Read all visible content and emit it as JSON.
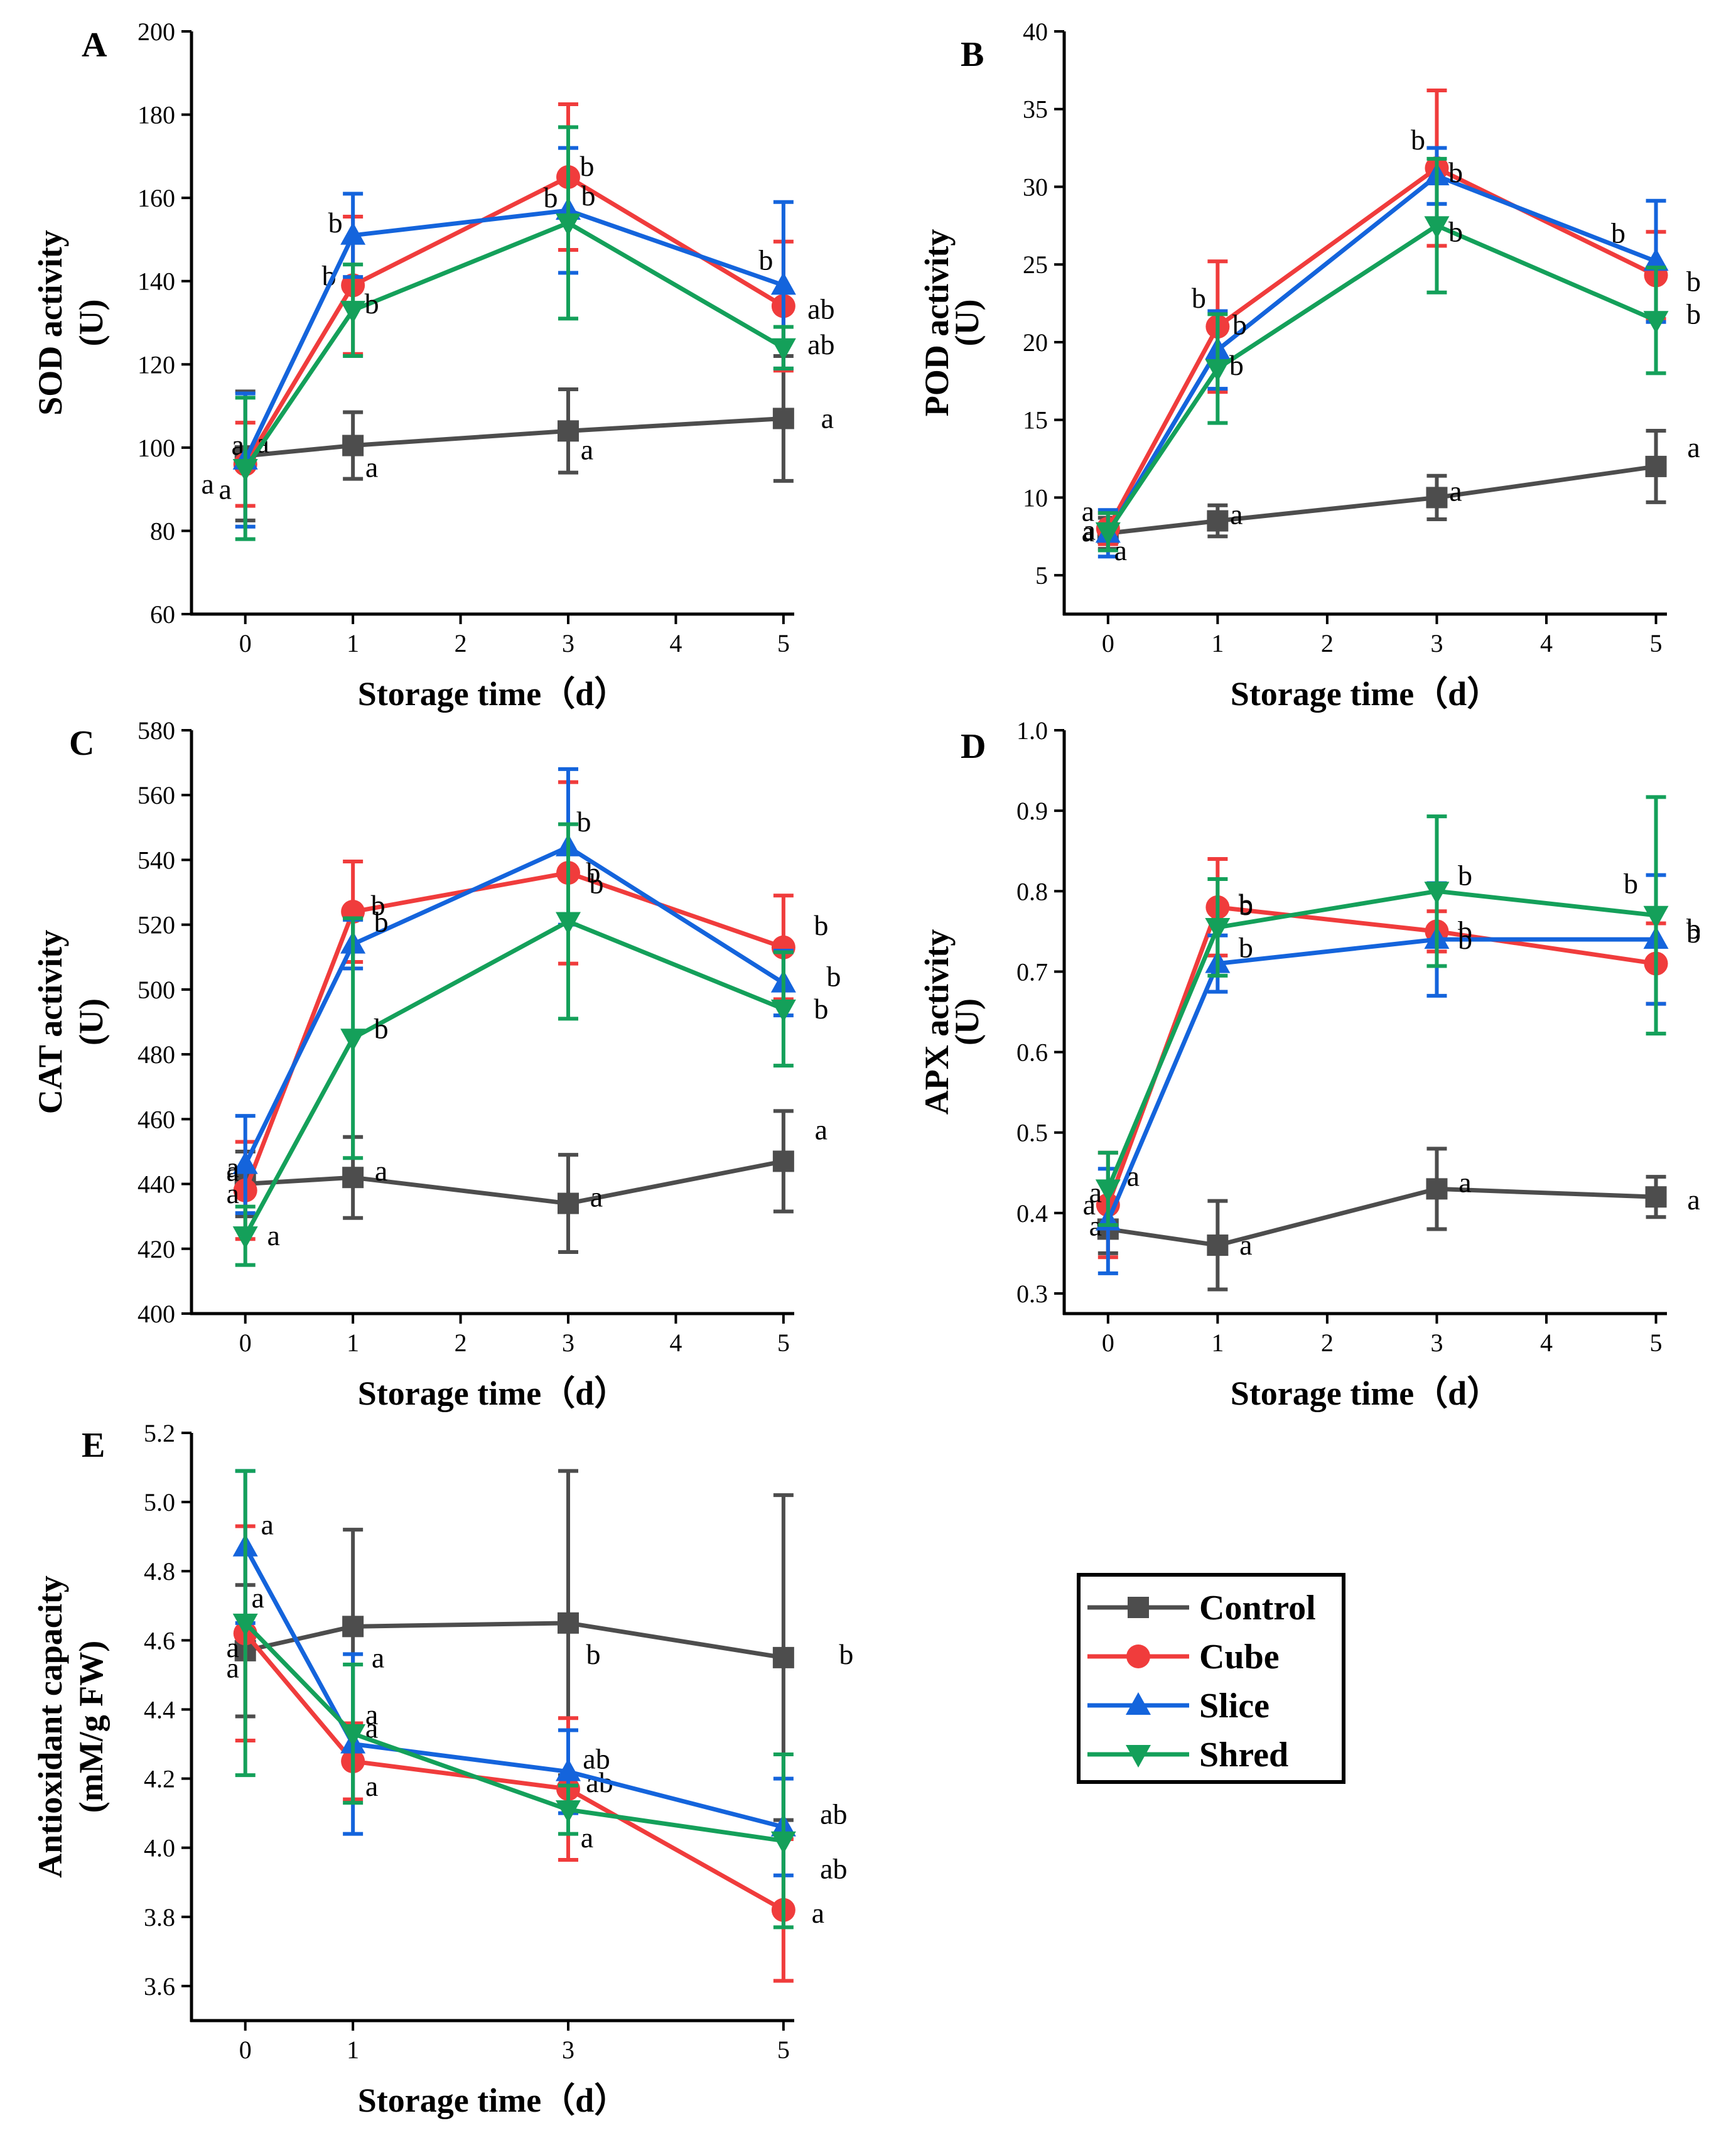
{
  "figure": {
    "colors": {
      "Control": "#4d4d4d",
      "Cube": "#f03c3c",
      "Slice": "#1464dc",
      "Shred": "#14a05a"
    }
  },
  "legend": {
    "title": "",
    "position": "lower-right",
    "entries": [
      {
        "name": "Control",
        "marker": "square"
      },
      {
        "name": "Cube",
        "marker": "circle"
      },
      {
        "name": "Slice",
        "marker": "triangle-up"
      },
      {
        "name": "Shred",
        "marker": "triangle-down"
      }
    ]
  },
  "chart_data": [
    {
      "panel": "A",
      "type": "line",
      "xlabel": "Storage time（d）",
      "ylabel": [
        "SOD activity",
        "(U)"
      ],
      "xlim": [
        -0.5,
        5.1
      ],
      "xticks": [
        0,
        1,
        2,
        3,
        4,
        5
      ],
      "ylim": [
        60,
        200
      ],
      "yticks": [
        60,
        80,
        100,
        120,
        140,
        160,
        180,
        200
      ],
      "x": [
        0,
        1,
        3,
        5
      ],
      "series": [
        {
          "name": "Control",
          "values": [
            98,
            100.5,
            104,
            107
          ],
          "errors": [
            15.5,
            8,
            10,
            15
          ],
          "labels": [
            "a",
            "a",
            "a",
            "a"
          ]
        },
        {
          "name": "Cube",
          "values": [
            96,
            139,
            165,
            134
          ],
          "errors": [
            10,
            16.5,
            17.5,
            15.5
          ],
          "labels": [
            "a",
            "b",
            "b",
            "ab"
          ]
        },
        {
          "name": "Slice",
          "values": [
            97,
            151,
            157,
            139
          ],
          "errors": [
            16,
            10,
            15,
            20
          ],
          "labels": [
            "a",
            "b",
            "b",
            "b"
          ]
        },
        {
          "name": "Shred",
          "values": [
            95,
            133,
            154,
            124
          ],
          "errors": [
            17,
            11,
            23,
            5
          ],
          "labels": [
            "a",
            "b",
            "b",
            "ab"
          ]
        }
      ]
    },
    {
      "panel": "B",
      "type": "line",
      "xlabel": "Storage time（d）",
      "ylabel": [
        "POD activity",
        "(U)"
      ],
      "xlim": [
        -0.4,
        5.1
      ],
      "xticks": [
        0,
        1,
        2,
        3,
        4,
        5
      ],
      "ylim": [
        2.5,
        40
      ],
      "yticks": [
        5,
        10,
        15,
        20,
        25,
        30,
        35,
        40
      ],
      "x": [
        0,
        1,
        3,
        5
      ],
      "series": [
        {
          "name": "Control",
          "values": [
            7.7,
            8.5,
            10,
            12
          ],
          "errors": [
            1,
            1,
            1.4,
            2.3
          ],
          "labels": [
            "a",
            "a",
            "a",
            "a"
          ]
        },
        {
          "name": "Cube",
          "values": [
            8.0,
            21,
            31.2,
            24.3
          ],
          "errors": [
            1,
            4.2,
            5,
            2.8
          ],
          "labels": [
            "a",
            "b",
            "b",
            "b"
          ]
        },
        {
          "name": "Slice",
          "values": [
            7.7,
            19.5,
            30.7,
            25.2
          ],
          "errors": [
            1.5,
            2.5,
            1.8,
            3.9
          ],
          "labels": [
            "a",
            "b",
            "b",
            "b"
          ]
        },
        {
          "name": "Shred",
          "values": [
            7.8,
            18.3,
            27.5,
            21.4
          ],
          "errors": [
            1.2,
            3.5,
            4.3,
            3.4
          ],
          "labels": [
            "a",
            "b",
            "b",
            "b"
          ]
        }
      ]
    },
    {
      "panel": "C",
      "type": "line",
      "xlabel": "Storage time（d）",
      "ylabel": [
        "CAT activity",
        "(U)"
      ],
      "xlim": [
        -0.5,
        5.1
      ],
      "xticks": [
        0,
        1,
        2,
        3,
        4,
        5
      ],
      "ylim": [
        400,
        580
      ],
      "yticks": [
        400,
        420,
        440,
        460,
        480,
        500,
        520,
        540,
        560,
        580
      ],
      "x": [
        0,
        1,
        3,
        5
      ],
      "series": [
        {
          "name": "Control",
          "values": [
            440,
            442,
            434,
            447
          ],
          "errors": [
            10,
            12.5,
            15,
            15.5
          ],
          "labels": [
            "a",
            "a",
            "a",
            "a"
          ]
        },
        {
          "name": "Cube",
          "values": [
            438,
            524,
            536,
            513
          ],
          "errors": [
            15,
            15.5,
            28,
            16
          ],
          "labels": [
            "a",
            "b",
            "b",
            "b"
          ]
        },
        {
          "name": "Slice",
          "values": [
            446,
            514,
            544,
            502
          ],
          "errors": [
            15,
            7.5,
            24,
            10
          ],
          "labels": [
            "a",
            "b",
            "b",
            "b"
          ]
        },
        {
          "name": "Shred",
          "values": [
            424,
            485,
            521,
            494
          ],
          "errors": [
            9,
            37,
            30,
            17.5
          ],
          "labels": [
            "a",
            "b",
            "b",
            "b"
          ]
        }
      ]
    },
    {
      "panel": "D",
      "type": "line",
      "xlabel": "Storage time（d）",
      "ylabel": [
        "APX activity",
        "(U)"
      ],
      "xlim": [
        -0.4,
        5.1
      ],
      "xticks": [
        0,
        1,
        2,
        3,
        4,
        5
      ],
      "ylim": [
        0.275,
        1.0
      ],
      "yticks": [
        0.3,
        0.4,
        0.5,
        0.6,
        0.7,
        0.8,
        0.9,
        1.0
      ],
      "x": [
        0,
        1,
        3,
        5
      ],
      "series": [
        {
          "name": "Control",
          "values": [
            0.38,
            0.36,
            0.43,
            0.42
          ],
          "errors": [
            0.03,
            0.055,
            0.05,
            0.025
          ],
          "labels": [
            "a",
            "a",
            "a",
            "a"
          ]
        },
        {
          "name": "Cube",
          "values": [
            0.41,
            0.78,
            0.75,
            0.71
          ],
          "errors": [
            0.065,
            0.06,
            0.025,
            0.05
          ],
          "labels": [
            "a",
            "b",
            "b",
            "b"
          ]
        },
        {
          "name": "Slice",
          "values": [
            0.39,
            0.71,
            0.74,
            0.74
          ],
          "errors": [
            0.065,
            0.035,
            0.07,
            0.08
          ],
          "labels": [
            "a",
            "b",
            "b",
            "b"
          ]
        },
        {
          "name": "Shred",
          "values": [
            0.43,
            0.755,
            0.8,
            0.77
          ],
          "errors": [
            0.045,
            0.06,
            0.093,
            0.147
          ],
          "labels": [
            "a",
            "b",
            "b",
            "b"
          ]
        }
      ]
    },
    {
      "panel": "E",
      "type": "line",
      "xlabel": "Storage time（d）",
      "ylabel": [
        "Antioxidant capacity",
        "(mM/g FW)"
      ],
      "xlim": [
        -0.5,
        5.1
      ],
      "xticks": [
        0,
        1,
        3,
        5
      ],
      "ylim": [
        3.5,
        5.2
      ],
      "yticks": [
        3.6,
        3.8,
        4.0,
        4.2,
        4.4,
        4.6,
        4.8,
        5.0,
        5.2
      ],
      "x": [
        0,
        1,
        3,
        5
      ],
      "series": [
        {
          "name": "Control",
          "values": [
            4.57,
            4.64,
            4.65,
            4.55
          ],
          "errors": [
            0.19,
            0.28,
            0.44,
            0.47
          ],
          "labels": [
            "a",
            "a",
            "b",
            "b"
          ]
        },
        {
          "name": "Cube",
          "values": [
            4.62,
            4.25,
            4.17,
            3.82
          ],
          "errors": [
            0.31,
            0.11,
            0.205,
            0.205
          ],
          "labels": [
            "a",
            "a",
            "ab",
            "a"
          ]
        },
        {
          "name": "Slice",
          "values": [
            4.87,
            4.3,
            4.22,
            4.06
          ],
          "errors": [
            0.22,
            0.26,
            0.12,
            0.14
          ],
          "labels": [
            "a",
            "a",
            "ab",
            "ab"
          ]
        },
        {
          "name": "Shred",
          "values": [
            4.65,
            4.33,
            4.11,
            4.02
          ],
          "errors": [
            0.44,
            0.2,
            0.07,
            0.25
          ],
          "labels": [
            "a",
            "a",
            "a",
            "ab"
          ]
        }
      ]
    }
  ]
}
